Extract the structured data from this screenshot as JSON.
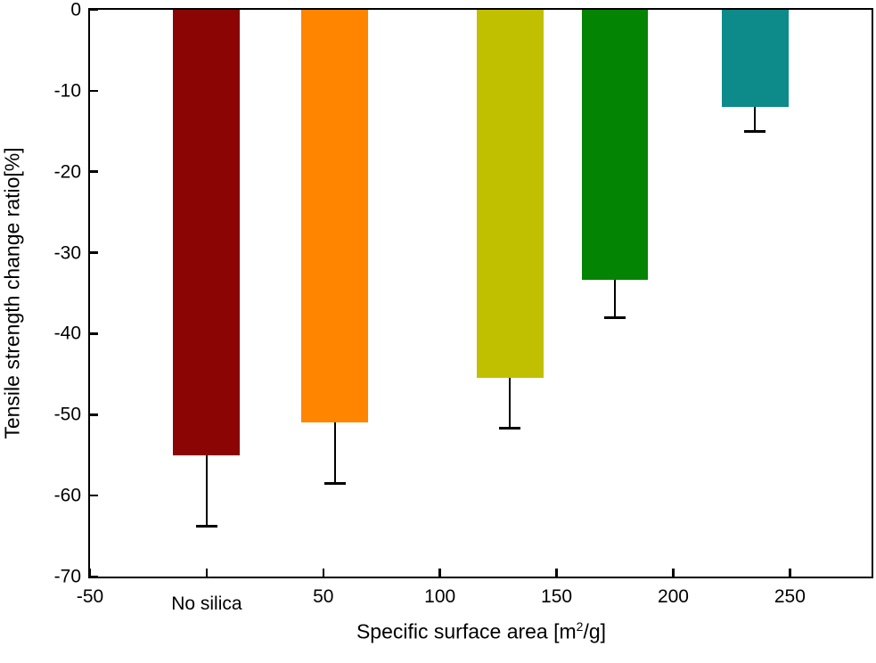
{
  "chart_data": {
    "type": "bar",
    "title": "",
    "ylabel": "Tensile strength change ratio[%]",
    "xlabel_parts": {
      "prefix": "Specific surface area [m",
      "sup": "2",
      "suffix": "/g]"
    },
    "xlim": [
      -50,
      285
    ],
    "ylim": [
      -70,
      0
    ],
    "grid": false,
    "legend": null,
    "axis_color": "#000000",
    "background": "#ffffff",
    "bar_width": 28.6,
    "error_cap_width": 9,
    "x_ticks": [
      {
        "value": -50,
        "label": "-50"
      },
      {
        "value": 0,
        "label": "No silica"
      },
      {
        "value": 50,
        "label": "50"
      },
      {
        "value": 100,
        "label": "100"
      },
      {
        "value": 150,
        "label": "150"
      },
      {
        "value": 200,
        "label": "200"
      },
      {
        "value": 250,
        "label": "250"
      }
    ],
    "y_ticks": [
      {
        "value": 0,
        "label": "0"
      },
      {
        "value": -10,
        "label": "-10"
      },
      {
        "value": -20,
        "label": "-20"
      },
      {
        "value": -30,
        "label": "-30"
      },
      {
        "value": -40,
        "label": "-40"
      },
      {
        "value": -50,
        "label": "-50"
      },
      {
        "value": -60,
        "label": "-60"
      },
      {
        "value": -70,
        "label": "-70"
      }
    ],
    "bars": [
      {
        "x": 0,
        "value": -55,
        "whisker_end": -63.8,
        "color": "#8B0505",
        "textured": false
      },
      {
        "x": 55,
        "value": -51,
        "whisker_end": -58.5,
        "color": "#FF8400",
        "textured": false
      },
      {
        "x": 130,
        "value": -45.5,
        "whisker_end": -51.7,
        "color": "#C0C000",
        "textured": false
      },
      {
        "x": 175,
        "value": -33.3,
        "whisker_end": -38,
        "color": "#038403",
        "textured": false
      },
      {
        "x": 235,
        "value": -12,
        "whisker_end": -15,
        "color": "#0D8A8A",
        "textured": true
      }
    ]
  }
}
